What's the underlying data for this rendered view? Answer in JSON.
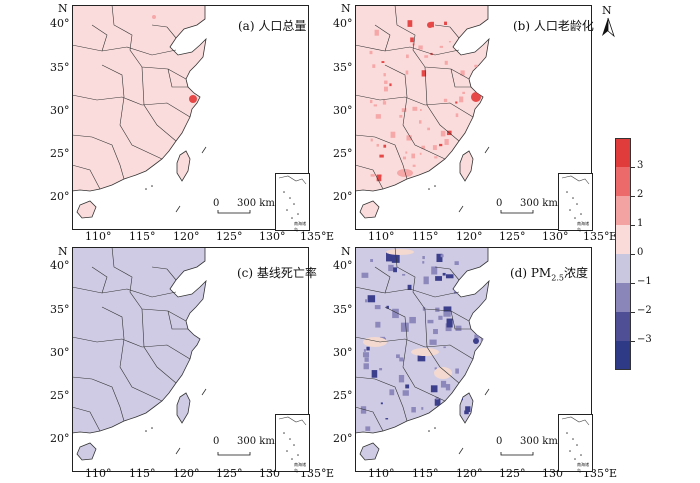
{
  "north_symbol": "N",
  "panels": [
    {
      "title": "(a) 人口总量",
      "tone": "pos_low"
    },
    {
      "title": "(b) 人口老龄化",
      "tone": "pos_mixed"
    },
    {
      "title": "(c) 基线死亡率",
      "tone": "neg_low"
    },
    {
      "title": "(d) PM2.5浓度",
      "tone": "neg_mixed"
    }
  ],
  "panel_d_title_parts": {
    "prefix": "(d) PM",
    "sub": "2.5",
    "suffix": "浓度"
  },
  "latitude_ticks": [
    "40°",
    "35°",
    "30°",
    "25°",
    "20°"
  ],
  "longitude_ticks": [
    "110°",
    "115°",
    "120°",
    "125°",
    "130°",
    "135°"
  ],
  "lat_axis_letter": "N",
  "lon_axis_letter": "E",
  "scale_bar": {
    "zero": "0",
    "label": "300 km"
  },
  "inset_label": "南海诸岛",
  "legend": {
    "labels": [
      "3",
      "2",
      "1",
      "0",
      "−1",
      "−2",
      "−3"
    ],
    "colors": [
      "#e03c3c",
      "#ec6a6a",
      "#f4a3a3",
      "#fbdada",
      "#c9c6e0",
      "#8b86b9",
      "#4f4f96",
      "#2f3a86"
    ]
  },
  "colors": {
    "pos_base": "#fbdcdc",
    "pos_mid": "#f6a8a8",
    "pos_hot": "#e64848",
    "neg_base": "#cfcbe4",
    "neg_mid": "#8c88bb",
    "neg_dark": "#3c3f8c",
    "neg_light_patch": "#f3d9d0",
    "sea": "#ffffff",
    "border": "#333333"
  }
}
